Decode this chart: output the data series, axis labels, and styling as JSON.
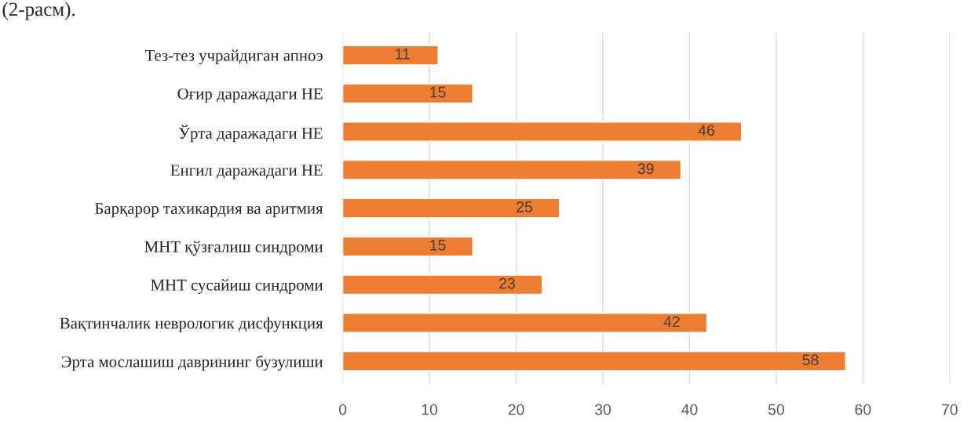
{
  "chart_data": {
    "type": "bar",
    "orientation": "horizontal",
    "categories": [
      "Тез-тез учрайдиган апноэ",
      "Оғир даражадаги НЕ",
      "Ўрта даражадаги НЕ",
      "Енгил даражадаги НЕ",
      "Барқарор тахикардия ва аритмия",
      "МНТ қўзғалиш синдроми",
      "МНТ сусайиш синдроми",
      "Вақтинчалик неврологик дисфункция",
      "Эрта мослашиш даврининг бузулиши"
    ],
    "values": [
      11,
      15,
      46,
      39,
      25,
      15,
      23,
      42,
      58
    ],
    "color": "#ed7d31",
    "xlim": [
      0,
      70
    ],
    "xticks": [
      0,
      10,
      20,
      30,
      40,
      50,
      60,
      70
    ],
    "grid": "x",
    "data_labels": true,
    "legend": false,
    "annotations": [
      "(2-расм)."
    ]
  }
}
